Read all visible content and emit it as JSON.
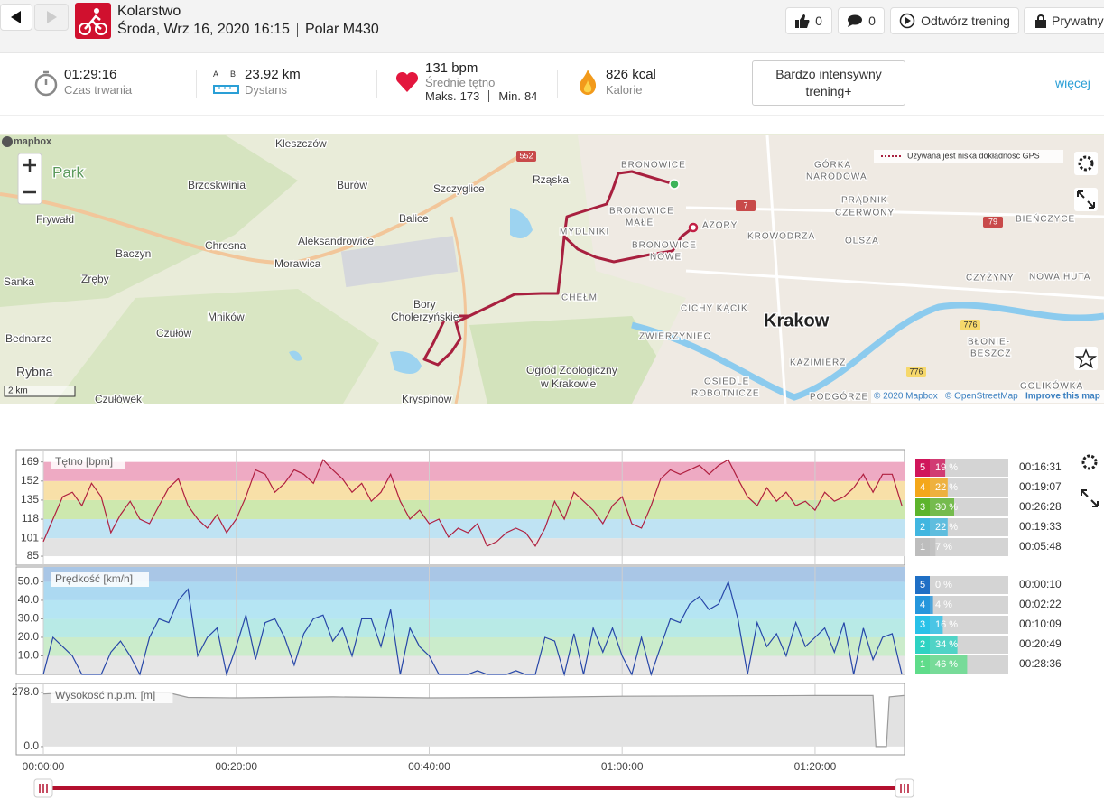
{
  "header": {
    "sport": "Kolarstwo",
    "datetime": "Środa, Wrz 16, 2020 16:15",
    "device": "Polar M430",
    "likes": 0,
    "comments": 0,
    "replay": "Odtwórz trening",
    "privacy": "Prywatny"
  },
  "summary": {
    "duration": "01:29:16",
    "duration_label": "Czas trwania",
    "distance_icon": [
      "A",
      "B"
    ],
    "distance": "23.92 km",
    "distance_label": "Dystans",
    "heart_rate": "131 bpm",
    "heart_rate_label": "Średnie tętno",
    "max_label": "Maks.",
    "max": 173,
    "min_label": "Min.",
    "min": 84,
    "calories": "826 kcal",
    "calories_label": "Kalorie",
    "training_load": "Bardzo intensywny trening+",
    "more": "więcej"
  },
  "map": {
    "logo": "mapbox",
    "labels": [
      "Kleszczów",
      "Brzoskwinia",
      "Burów",
      "Szczyglice",
      "Rząska",
      "Balice",
      "Frywałd",
      "Chrosna",
      "Aleksandrowice",
      "Morawica",
      "Baczyn",
      "Sanka",
      "Zręby",
      "Mników",
      "Czułów",
      "Bednarze",
      "Rybna",
      "Czułówek",
      "Bory",
      "Cholerzyńskie",
      "Kryspinów",
      "Ogród Zoologiczny",
      "w Krakowie",
      "Krakow",
      "Park",
      "BRONOWICE",
      "GÓRKA",
      "NARODOWA",
      "MYDLNIKI",
      "BRONOWICE",
      "MAŁE",
      "BRONOWICE",
      "NOWE",
      "AZORY",
      "KROWODRZA",
      "PRĄDNIK",
      "CZERWONY",
      "OLSZA",
      "BIEŃCZYCE",
      "CZYŻYNY",
      "NOWA HUTA",
      "BŁONIE-",
      "BESZCZ",
      "CICHY KĄCIK",
      "ZWIERZYNIEC",
      "KAZIMIERZ",
      "OSIEDLE",
      "ROBOTNICZE",
      "PODGÓRZE",
      "GOLIKÓWKA",
      "CHEŁM"
    ],
    "roads": [
      "552",
      "7",
      "79",
      "776",
      "776"
    ],
    "gps_note": "Używana jest niska dokładność GPS",
    "scale": "2 km",
    "attribution": [
      "© 2020 Mapbox",
      "© OpenStreetMap",
      "Improve this map"
    ]
  },
  "chart_data": [
    {
      "type": "line",
      "title": "Tętno [bpm]",
      "x": [
        0,
        1,
        2,
        3,
        4,
        5,
        6,
        7,
        8,
        9,
        10,
        11,
        12,
        13,
        14,
        15,
        16,
        17,
        18,
        19,
        20,
        21,
        22,
        23,
        24,
        25,
        26,
        27,
        28,
        29,
        30,
        31,
        32,
        33,
        34,
        35,
        36,
        37,
        38,
        39,
        40,
        41,
        42,
        43,
        44,
        45,
        46,
        47,
        48,
        49,
        50,
        51,
        52,
        53,
        54,
        55,
        56,
        57,
        58,
        59,
        60,
        61,
        62,
        63,
        64,
        65,
        66,
        67,
        68,
        69,
        70,
        71,
        72,
        73,
        74,
        75,
        76,
        77,
        78,
        79,
        80,
        81,
        82,
        83,
        84,
        85,
        86,
        87,
        88,
        89
      ],
      "series": [
        {
          "color": "#b02040",
          "values": [
            98,
            118,
            138,
            142,
            130,
            150,
            138,
            106,
            122,
            134,
            118,
            114,
            130,
            146,
            154,
            130,
            118,
            110,
            122,
            106,
            118,
            138,
            162,
            158,
            142,
            150,
            162,
            158,
            150,
            171,
            162,
            154,
            142,
            150,
            134,
            142,
            158,
            134,
            118,
            126,
            114,
            118,
            102,
            110,
            106,
            114,
            94,
            98,
            106,
            110,
            106,
            94,
            110,
            134,
            118,
            142,
            134,
            126,
            114,
            130,
            138,
            114,
            110,
            130,
            154,
            162,
            158,
            162,
            166,
            158,
            166,
            171,
            154,
            138,
            130,
            146,
            134,
            142,
            130,
            134,
            126,
            142,
            134,
            138,
            146,
            158,
            142,
            158,
            158,
            130
          ]
        }
      ],
      "xlim": [
        0,
        89.27
      ],
      "ylim": [
        77,
        180
      ],
      "yticks": [
        85,
        101,
        118,
        135,
        152,
        169
      ],
      "bands": [
        {
          "from": 85,
          "to": 101,
          "color": "#e3e3e3"
        },
        {
          "from": 101,
          "to": 118,
          "color": "#bfe3f3"
        },
        {
          "from": 118,
          "to": 135,
          "color": "#cde8ae"
        },
        {
          "from": 135,
          "to": 152,
          "color": "#f8e0a8"
        },
        {
          "from": 152,
          "to": 169,
          "color": "#eeaac3"
        }
      ],
      "zones": {
        "levels": [
          5,
          4,
          3,
          2,
          1
        ],
        "values": [
          19,
          22,
          30,
          22,
          7
        ],
        "value_labels": [
          "19 %",
          "22 %",
          "30 %",
          "22 %",
          "7 %"
        ],
        "times": [
          "00:16:31",
          "00:19:07",
          "00:26:28",
          "00:19:33",
          "00:05:48"
        ],
        "colors": [
          "#d0155a",
          "#f4a719",
          "#5db42c",
          "#41b6e0",
          "#bdbdbd"
        ]
      }
    },
    {
      "type": "line",
      "title": "Prędkość [km/h]",
      "x": [
        0,
        1,
        2,
        3,
        4,
        5,
        6,
        7,
        8,
        9,
        10,
        11,
        12,
        13,
        14,
        15,
        16,
        17,
        18,
        19,
        20,
        21,
        22,
        23,
        24,
        25,
        26,
        27,
        28,
        29,
        30,
        31,
        32,
        33,
        34,
        35,
        36,
        37,
        38,
        39,
        40,
        41,
        42,
        43,
        44,
        45,
        46,
        47,
        48,
        49,
        50,
        51,
        52,
        53,
        54,
        55,
        56,
        57,
        58,
        59,
        60,
        61,
        62,
        63,
        64,
        65,
        66,
        67,
        68,
        69,
        70,
        71,
        72,
        73,
        74,
        75,
        76,
        77,
        78,
        79,
        80,
        81,
        82,
        83,
        84,
        85,
        86,
        87,
        88,
        89
      ],
      "series": [
        {
          "color": "#2747a8",
          "values": [
            0,
            20,
            15,
            10,
            0,
            0,
            0,
            12,
            18,
            10,
            0,
            20,
            30,
            28,
            40,
            46,
            10,
            20,
            25,
            0,
            15,
            32,
            8,
            28,
            30,
            20,
            5,
            22,
            30,
            32,
            18,
            25,
            10,
            30,
            30,
            15,
            35,
            0,
            25,
            15,
            10,
            0,
            0,
            0,
            0,
            2,
            0,
            0,
            0,
            2,
            0,
            0,
            20,
            18,
            0,
            22,
            0,
            25,
            12,
            25,
            10,
            0,
            20,
            0,
            15,
            30,
            28,
            38,
            42,
            35,
            38,
            50,
            30,
            0,
            28,
            15,
            22,
            10,
            28,
            15,
            20,
            25,
            12,
            28,
            0,
            25,
            8,
            20,
            22,
            0
          ]
        }
      ],
      "xlim": [
        0,
        89.27
      ],
      "ylim": [
        0,
        58
      ],
      "yticks": [
        {
          "value": 10,
          "label": "10.0"
        },
        {
          "value": 20,
          "label": "20.0"
        },
        {
          "value": 30,
          "label": "30.0"
        },
        {
          "value": 40,
          "label": "40.0"
        },
        {
          "value": 50,
          "label": "50.0"
        }
      ],
      "bands": [
        {
          "from": 0,
          "to": 10,
          "color": "#e6e6e6"
        },
        {
          "from": 10,
          "to": 20,
          "color": "#cbeccb"
        },
        {
          "from": 20,
          "to": 30,
          "color": "#b8eae6"
        },
        {
          "from": 30,
          "to": 40,
          "color": "#b5e5f3"
        },
        {
          "from": 40,
          "to": 50,
          "color": "#acd9f1"
        },
        {
          "from": 50,
          "to": 58,
          "color": "#a9c6e6"
        }
      ],
      "zones": {
        "levels": [
          5,
          4,
          3,
          2,
          1
        ],
        "values": [
          0,
          4,
          16,
          34,
          46
        ],
        "value_labels": [
          "0 %",
          "4 %",
          "16 %",
          "34 %",
          "46 %"
        ],
        "times": [
          "00:00:10",
          "00:02:22",
          "00:10:09",
          "00:20:49",
          "00:28:36"
        ],
        "colors": [
          "#1f6fc5",
          "#2596dc",
          "#28c1e8",
          "#2ed2c2",
          "#5fdc8a"
        ]
      }
    },
    {
      "type": "area",
      "title": "Wysokość n.p.m. [m]",
      "x": [
        0,
        2,
        4,
        8,
        13,
        15,
        20,
        30,
        40,
        50,
        60,
        70,
        80,
        86,
        86.3,
        87.4,
        87.7,
        89.2
      ],
      "series": [
        {
          "color": "#9a9a9a",
          "fill": "#e2e2e2",
          "values": [
            270,
            275,
            276,
            276,
            276,
            252,
            250,
            255,
            250,
            252,
            258,
            260,
            262,
            262,
            0,
            0,
            255,
            262
          ]
        }
      ],
      "xlim": [
        0,
        89.27
      ],
      "ylim": [
        -42,
        324
      ],
      "yticks": [
        {
          "value": 0,
          "label": "0.0"
        },
        {
          "value": 278,
          "label": "278.0"
        }
      ],
      "xticks": [
        {
          "value": 0,
          "label": "00:00:00"
        },
        {
          "value": 20,
          "label": "00:20:00"
        },
        {
          "value": 40,
          "label": "00:40:00"
        },
        {
          "value": 60,
          "label": "01:00:00"
        },
        {
          "value": 80,
          "label": "01:20:00"
        }
      ]
    }
  ]
}
